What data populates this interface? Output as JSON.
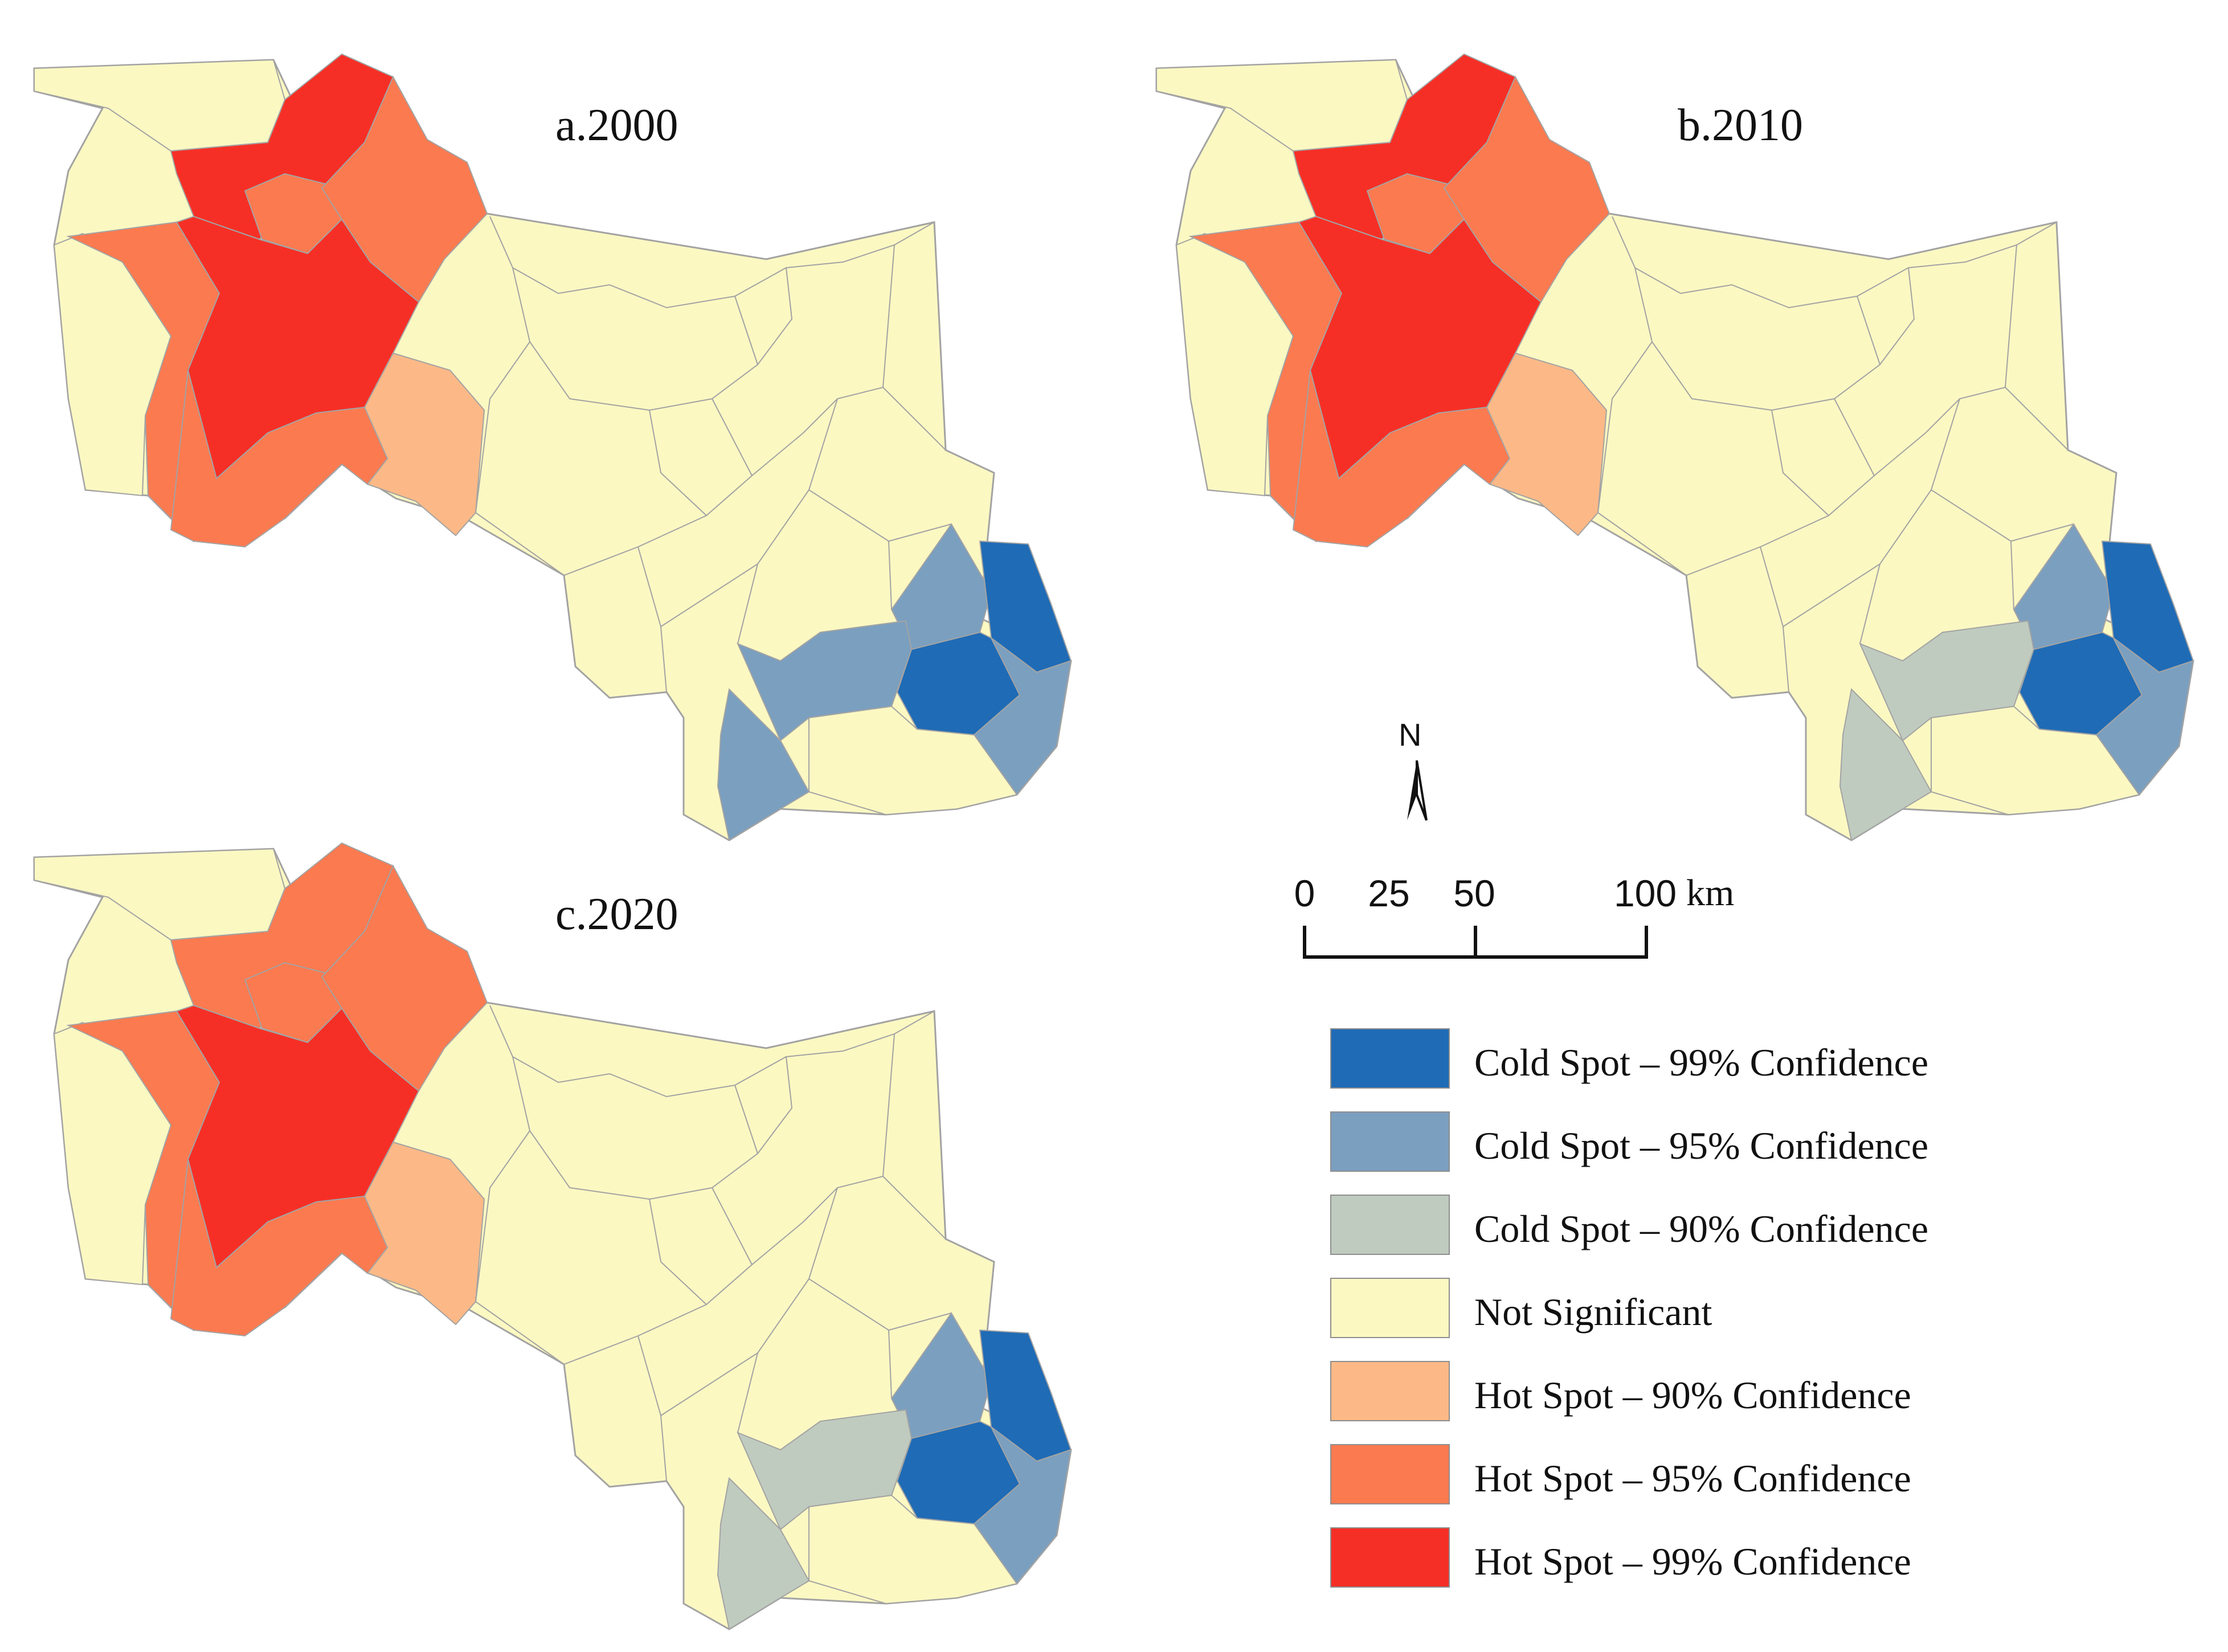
{
  "colors": {
    "cold99": "#1f6bb5",
    "cold95": "#7b9fbf",
    "cold90": "#bfcbbf",
    "not_significant": "#fbf8c2",
    "hot90": "#fcb987",
    "hot95": "#fc7a50",
    "hot99": "#f62f26",
    "border": "#a3a3a3"
  },
  "panels": [
    {
      "title": "a.2000",
      "regions": {
        "nw": "not_significant",
        "west": "not_significant",
        "core_north": "hot99",
        "core_center": "hot99",
        "core_small": "hot95",
        "left_band": "hot95",
        "south_west": "hot95",
        "north_east": "hot95",
        "south_mid": "hot90",
        "se_west": "cold95",
        "se_south": "cold95",
        "se_north": "cold95",
        "se_center": "cold99",
        "se_east": "cold99",
        "se_lower_east": "cold95",
        "south_bottom": "not_significant"
      }
    },
    {
      "title": "b.2010",
      "regions": {
        "nw": "not_significant",
        "west": "not_significant",
        "core_north": "hot99",
        "core_center": "hot99",
        "core_small": "hot95",
        "left_band": "hot95",
        "south_west": "hot95",
        "north_east": "hot95",
        "south_mid": "hot90",
        "se_west": "cold90",
        "se_south": "cold90",
        "se_north": "cold95",
        "se_center": "cold99",
        "se_east": "cold99",
        "se_lower_east": "cold95",
        "south_bottom": "not_significant"
      }
    },
    {
      "title": "c.2020",
      "regions": {
        "nw": "not_significant",
        "west": "not_significant",
        "core_north": "hot95",
        "core_center": "hot99",
        "core_small": "hot95",
        "left_band": "hot95",
        "south_west": "hot95",
        "north_east": "hot95",
        "south_mid": "hot90",
        "se_west": "cold90",
        "se_south": "cold90",
        "se_north": "cold95",
        "se_center": "cold99",
        "se_east": "cold99",
        "se_lower_east": "cold95",
        "south_bottom": "not_significant"
      }
    }
  ],
  "north_arrow": {
    "label": "N"
  },
  "scale_bar": {
    "ticks": [
      "0",
      "25",
      "50",
      "100"
    ],
    "unit": "km"
  },
  "legend": {
    "items": [
      {
        "label": "Cold Spot – 99% Confidence",
        "color_key": "cold99"
      },
      {
        "label": "Cold Spot – 95% Confidence",
        "color_key": "cold95"
      },
      {
        "label": "Cold Spot – 90% Confidence",
        "color_key": "cold90"
      },
      {
        "label": "Not Significant",
        "color_key": "not_significant"
      },
      {
        "label": "Hot Spot – 90% Confidence",
        "color_key": "hot90"
      },
      {
        "label": "Hot Spot – 95% Confidence",
        "color_key": "hot95"
      },
      {
        "label": "Hot Spot – 99% Confidence",
        "color_key": "hot99"
      }
    ]
  }
}
